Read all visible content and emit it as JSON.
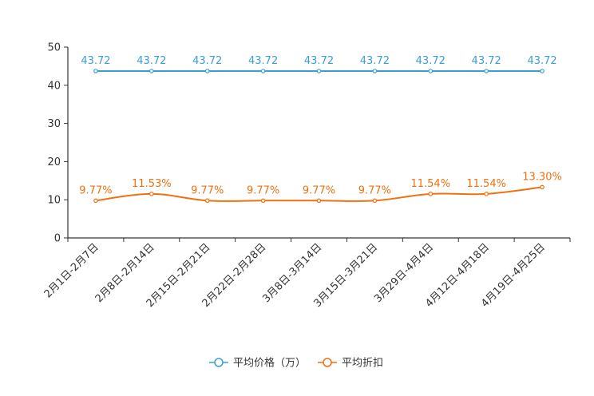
{
  "chart_data": {
    "type": "line",
    "title": "",
    "xlabel": "",
    "ylabel": "",
    "ylim": [
      0,
      50
    ],
    "yticks": [
      0,
      10,
      20,
      30,
      40,
      50
    ],
    "grid": false,
    "legend_position": "bottom-center",
    "categories": [
      "2月1日-2月7日",
      "2月8日-2月14日",
      "2月15日-2月21日",
      "2月22日-2月28日",
      "3月8日-3月14日",
      "3月15日-3月21日",
      "3月29日-4月4日",
      "4月12日-4月18日",
      "4月19日-4月25日"
    ],
    "series": [
      {
        "name": "平均价格（万）",
        "color": "#3a9fd6",
        "values": [
          43.72,
          43.72,
          43.72,
          43.72,
          43.72,
          43.72,
          43.72,
          43.72,
          43.72
        ],
        "labels": [
          "43.72",
          "43.72",
          "43.72",
          "43.72",
          "43.72",
          "43.72",
          "43.72",
          "43.72",
          "43.72"
        ],
        "smooth": false
      },
      {
        "name": "平均折扣",
        "color": "#f07010",
        "values": [
          9.77,
          11.53,
          9.77,
          9.77,
          9.77,
          9.77,
          11.54,
          11.54,
          13.3
        ],
        "labels": [
          "9.77%",
          "11.53%",
          "9.77%",
          "9.77%",
          "9.77%",
          "9.77%",
          "11.54%",
          "11.54%",
          "13.30%"
        ],
        "smooth": true
      }
    ]
  }
}
